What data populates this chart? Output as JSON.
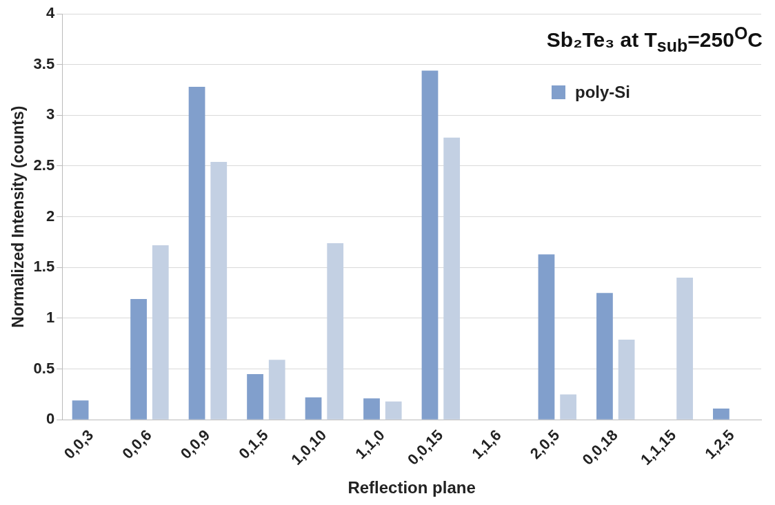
{
  "chart_data": {
    "type": "bar",
    "xlabel": "Reflection plane",
    "ylabel": "Normalized Intensity (counts)",
    "categories": [
      "0,0,3",
      "0,0,6",
      "0,0,9",
      "0,1,5",
      "1,0,10",
      "1,1,0",
      "0,0,15",
      "1,1,6",
      "2,0,5",
      "0,0,18",
      "1,1,15",
      "1,2,5"
    ],
    "series": [
      {
        "name": "poly-Si",
        "color": "#819fcc",
        "values": [
          0.19,
          1.19,
          3.28,
          0.45,
          0.22,
          0.21,
          3.44,
          0,
          1.63,
          1.25,
          0,
          0.11
        ]
      },
      {
        "color": "#c3d0e3",
        "values": [
          0,
          1.72,
          2.54,
          0.59,
          1.74,
          0.18,
          2.78,
          0,
          0.25,
          0.79,
          1.4,
          0
        ]
      }
    ],
    "ylim": [
      0,
      4
    ],
    "yticks": [
      0,
      0.5,
      1,
      1.5,
      2,
      2.5,
      3,
      3.5,
      4
    ],
    "grid": "y",
    "legend": "top right",
    "annotations": [
      "Sb₂Te₃ at T$_{sub}$=250$^{O}$C"
    ]
  }
}
